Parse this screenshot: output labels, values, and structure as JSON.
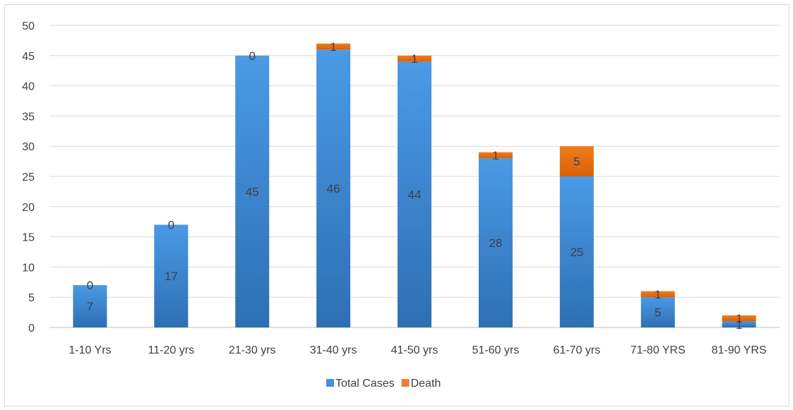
{
  "chart_data": {
    "type": "bar",
    "stacked": true,
    "title": "",
    "xlabel": "",
    "ylabel": "",
    "ylim": [
      0,
      50
    ],
    "ytick_step": 5,
    "grid": true,
    "legend_position": "bottom",
    "categories": [
      "1-10 Yrs",
      "11-20 yrs",
      "21-30 yrs",
      "31-40 yrs",
      "41-50 yrs",
      "51-60 yrs",
      "61-70 yrs",
      "71-80 YRS",
      "81-90 YRS"
    ],
    "series": [
      {
        "name": "Total Cases",
        "color": "#4a90d9",
        "values": [
          7,
          17,
          45,
          46,
          44,
          28,
          25,
          5,
          1
        ]
      },
      {
        "name": "Death",
        "color": "#ed7d31",
        "values": [
          0,
          0,
          0,
          1,
          1,
          1,
          5,
          1,
          1
        ]
      }
    ]
  }
}
